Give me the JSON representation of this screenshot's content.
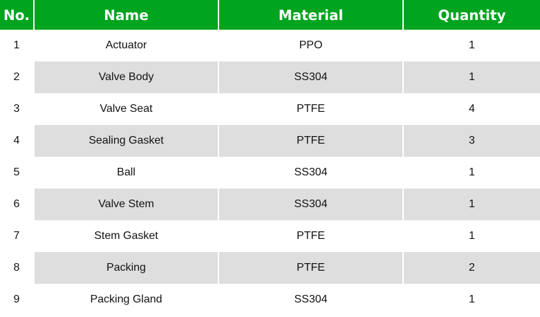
{
  "colors": {
    "header": "#00a41e",
    "stripe": "#dedede"
  },
  "columns": [
    "No.",
    "Name",
    "Material",
    "Quantity"
  ],
  "rows": [
    [
      "1",
      "Actuator",
      "PPO",
      "1"
    ],
    [
      "2",
      "Valve Body",
      "SS304",
      "1"
    ],
    [
      "3",
      "Valve Seat",
      "PTFE",
      "4"
    ],
    [
      "4",
      "Sealing Gasket",
      "PTFE",
      "3"
    ],
    [
      "5",
      "Ball",
      "SS304",
      "1"
    ],
    [
      "6",
      "Valve Stem",
      "SS304",
      "1"
    ],
    [
      "7",
      "Stem Gasket",
      "PTFE",
      "1"
    ],
    [
      "8",
      "Packing",
      "PTFE",
      "2"
    ],
    [
      "9",
      "Packing Gland",
      "SS304",
      "1"
    ]
  ]
}
